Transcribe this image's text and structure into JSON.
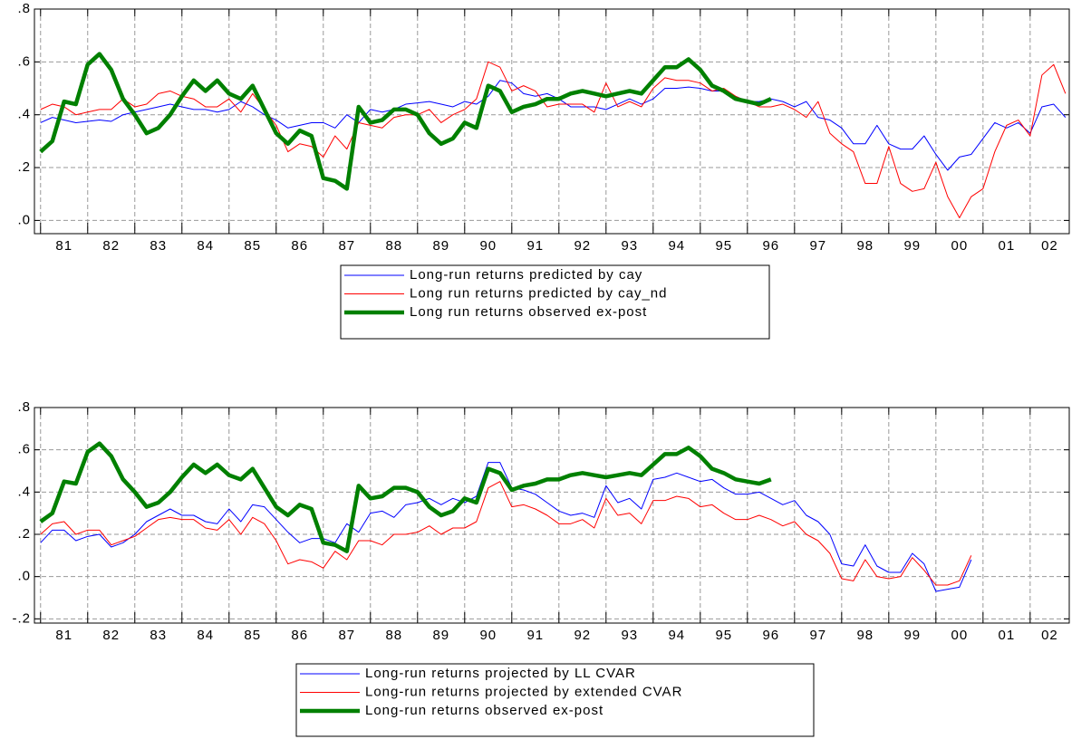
{
  "chart_data": [
    {
      "type": "line",
      "legend": "bottom",
      "grid": true,
      "xlim": [
        1980.87,
        2002.83
      ],
      "ylim": [
        -0.05,
        0.8
      ],
      "yticks": [
        {
          "value": 0.8,
          "label": ".8"
        },
        {
          "value": 0.6,
          "label": ".6"
        },
        {
          "value": 0.4,
          "label": ".4"
        },
        {
          "value": 0.2,
          "label": ".2"
        },
        {
          "value": 0,
          "label": ".0"
        }
      ],
      "xticks": [
        {
          "value": 1981,
          "label": "81"
        },
        {
          "value": 1982,
          "label": "82"
        },
        {
          "value": 1983,
          "label": "83"
        },
        {
          "value": 1984,
          "label": "84"
        },
        {
          "value": 1985,
          "label": "85"
        },
        {
          "value": 1986,
          "label": "86"
        },
        {
          "value": 1987,
          "label": "87"
        },
        {
          "value": 1988,
          "label": "88"
        },
        {
          "value": 1989,
          "label": "89"
        },
        {
          "value": 1990,
          "label": "90"
        },
        {
          "value": 1991,
          "label": "91"
        },
        {
          "value": 1992,
          "label": "92"
        },
        {
          "value": 1993,
          "label": "93"
        },
        {
          "value": 1994,
          "label": "94"
        },
        {
          "value": 1995,
          "label": "95"
        },
        {
          "value": 1996,
          "label": "96"
        },
        {
          "value": 1997,
          "label": "97"
        },
        {
          "value": 1998,
          "label": "98"
        },
        {
          "value": 1999,
          "label": "99"
        },
        {
          "value": 2000,
          "label": "00"
        },
        {
          "value": 2001,
          "label": "01"
        },
        {
          "value": 2002,
          "label": "02"
        }
      ],
      "x": [
        1981,
        1981.25,
        1981.5,
        1981.75,
        1982,
        1982.25,
        1982.5,
        1982.75,
        1983,
        1983.25,
        1983.5,
        1983.75,
        1984,
        1984.25,
        1984.5,
        1984.75,
        1985,
        1985.25,
        1985.5,
        1985.75,
        1986,
        1986.25,
        1986.5,
        1986.75,
        1987,
        1987.25,
        1987.5,
        1987.75,
        1988,
        1988.25,
        1988.5,
        1988.75,
        1989,
        1989.25,
        1989.5,
        1989.75,
        1990,
        1990.25,
        1990.5,
        1990.75,
        1991,
        1991.25,
        1991.5,
        1991.75,
        1992,
        1992.25,
        1992.5,
        1992.75,
        1993,
        1993.25,
        1993.5,
        1993.75,
        1994,
        1994.25,
        1994.5,
        1994.75,
        1995,
        1995.25,
        1995.5,
        1995.75,
        1996,
        1996.25,
        1996.5,
        1996.75,
        1997,
        1997.25,
        1997.5,
        1997.75,
        1998,
        1998.25,
        1998.5,
        1998.75,
        1999,
        1999.25,
        1999.5,
        1999.75,
        2000,
        2000.25,
        2000.5,
        2000.75,
        2001,
        2001.25,
        2001.5,
        2001.75,
        2002,
        2002.25,
        2002.5,
        2002.75
      ],
      "series": [
        {
          "name": "Long-run returns predicted by cay",
          "color": "#0000ff",
          "width": 1,
          "values": [
            0.37,
            0.39,
            0.38,
            0.37,
            0.375,
            0.38,
            0.375,
            0.4,
            0.41,
            0.42,
            0.43,
            0.44,
            0.43,
            0.42,
            0.42,
            0.41,
            0.42,
            0.45,
            0.43,
            0.4,
            0.38,
            0.35,
            0.36,
            0.37,
            0.37,
            0.35,
            0.4,
            0.37,
            0.42,
            0.41,
            0.42,
            0.44,
            0.445,
            0.45,
            0.44,
            0.43,
            0.45,
            0.44,
            0.47,
            0.53,
            0.52,
            0.48,
            0.47,
            0.48,
            0.46,
            0.43,
            0.43,
            0.43,
            0.42,
            0.44,
            0.46,
            0.44,
            0.46,
            0.5,
            0.5,
            0.505,
            0.5,
            0.49,
            0.49,
            0.47,
            0.45,
            0.45,
            0.46,
            0.45,
            0.43,
            0.45,
            0.39,
            0.38,
            0.35,
            0.29,
            0.29,
            0.36,
            0.29,
            0.27,
            0.27,
            0.32,
            0.25,
            0.19,
            0.24,
            0.25,
            0.31,
            0.37,
            0.35,
            0.37,
            0.33,
            0.43,
            0.44,
            0.39
          ]
        },
        {
          "name": "Long run returns predicted by cay_nd",
          "color": "#ff0000",
          "width": 1,
          "values": [
            0.42,
            0.44,
            0.43,
            0.4,
            0.41,
            0.42,
            0.42,
            0.46,
            0.43,
            0.44,
            0.48,
            0.49,
            0.47,
            0.46,
            0.43,
            0.43,
            0.46,
            0.41,
            0.48,
            0.42,
            0.36,
            0.26,
            0.29,
            0.28,
            0.24,
            0.32,
            0.27,
            0.37,
            0.36,
            0.35,
            0.39,
            0.4,
            0.4,
            0.42,
            0.37,
            0.4,
            0.42,
            0.46,
            0.6,
            0.58,
            0.49,
            0.51,
            0.49,
            0.43,
            0.44,
            0.44,
            0.44,
            0.41,
            0.52,
            0.43,
            0.45,
            0.43,
            0.5,
            0.54,
            0.53,
            0.53,
            0.52,
            0.49,
            0.5,
            0.47,
            0.45,
            0.43,
            0.43,
            0.44,
            0.42,
            0.39,
            0.45,
            0.33,
            0.29,
            0.26,
            0.14,
            0.14,
            0.28,
            0.14,
            0.11,
            0.12,
            0.22,
            0.09,
            0.01,
            0.09,
            0.12,
            0.26,
            0.36,
            0.38,
            0.32,
            0.55,
            0.59,
            0.48
          ]
        },
        {
          "name": "Long run returns observed ex-post",
          "color": "#008000",
          "width": 4.5,
          "values": [
            0.26,
            0.3,
            0.45,
            0.44,
            0.59,
            0.63,
            0.57,
            0.46,
            0.4,
            0.33,
            0.35,
            0.4,
            0.47,
            0.53,
            0.49,
            0.53,
            0.48,
            0.46,
            0.51,
            0.42,
            0.33,
            0.29,
            0.34,
            0.32,
            0.16,
            0.15,
            0.12,
            0.43,
            0.37,
            0.38,
            0.42,
            0.42,
            0.4,
            0.33,
            0.29,
            0.31,
            0.37,
            0.35,
            0.51,
            0.49,
            0.41,
            0.43,
            0.44,
            0.46,
            0.46,
            0.48,
            0.49,
            0.48,
            0.47,
            0.48,
            0.49,
            0.48,
            0.53,
            0.58,
            0.58,
            0.61,
            0.57,
            0.51,
            0.49,
            0.46,
            0.45,
            0.44,
            0.46,
            null,
            null,
            null,
            null,
            null,
            null,
            null,
            null,
            null,
            null,
            null,
            null,
            null,
            null,
            null,
            null,
            null,
            null,
            null,
            null,
            null,
            null,
            null,
            null,
            null
          ]
        }
      ]
    },
    {
      "type": "line",
      "legend": "bottom",
      "grid": true,
      "xlim": [
        1980.87,
        2002.83
      ],
      "ylim": [
        -0.22,
        0.8
      ],
      "yticks": [
        {
          "value": 0.8,
          "label": ".8"
        },
        {
          "value": 0.6,
          "label": ".6"
        },
        {
          "value": 0.4,
          "label": ".4"
        },
        {
          "value": 0.2,
          "label": ".2"
        },
        {
          "value": 0,
          "label": ".0"
        },
        {
          "value": -0.2,
          "label": "-.2"
        }
      ],
      "xticks": [
        {
          "value": 1981,
          "label": "81"
        },
        {
          "value": 1982,
          "label": "82"
        },
        {
          "value": 1983,
          "label": "83"
        },
        {
          "value": 1984,
          "label": "84"
        },
        {
          "value": 1985,
          "label": "85"
        },
        {
          "value": 1986,
          "label": "86"
        },
        {
          "value": 1987,
          "label": "87"
        },
        {
          "value": 1988,
          "label": "88"
        },
        {
          "value": 1989,
          "label": "89"
        },
        {
          "value": 1990,
          "label": "90"
        },
        {
          "value": 1991,
          "label": "91"
        },
        {
          "value": 1992,
          "label": "92"
        },
        {
          "value": 1993,
          "label": "93"
        },
        {
          "value": 1994,
          "label": "94"
        },
        {
          "value": 1995,
          "label": "95"
        },
        {
          "value": 1996,
          "label": "96"
        },
        {
          "value": 1997,
          "label": "97"
        },
        {
          "value": 1998,
          "label": "98"
        },
        {
          "value": 1999,
          "label": "99"
        },
        {
          "value": 2000,
          "label": "00"
        },
        {
          "value": 2001,
          "label": "01"
        },
        {
          "value": 2002,
          "label": "02"
        }
      ],
      "x": [
        1981,
        1981.25,
        1981.5,
        1981.75,
        1982,
        1982.25,
        1982.5,
        1982.75,
        1983,
        1983.25,
        1983.5,
        1983.75,
        1984,
        1984.25,
        1984.5,
        1984.75,
        1985,
        1985.25,
        1985.5,
        1985.75,
        1986,
        1986.25,
        1986.5,
        1986.75,
        1987,
        1987.25,
        1987.5,
        1987.75,
        1988,
        1988.25,
        1988.5,
        1988.75,
        1989,
        1989.25,
        1989.5,
        1989.75,
        1990,
        1990.25,
        1990.5,
        1990.75,
        1991,
        1991.25,
        1991.5,
        1991.75,
        1992,
        1992.25,
        1992.5,
        1992.75,
        1993,
        1993.25,
        1993.5,
        1993.75,
        1994,
        1994.25,
        1994.5,
        1994.75,
        1995,
        1995.25,
        1995.5,
        1995.75,
        1996,
        1996.25,
        1996.5,
        1996.75,
        1997,
        1997.25,
        1997.5,
        1997.75,
        1998,
        1998.25,
        1998.5,
        1998.75,
        1999,
        1999.25,
        1999.5,
        1999.75,
        2000,
        2000.25,
        2000.5,
        2000.75,
        2001,
        2001.25,
        2001.5,
        2001.75,
        2002,
        2002.25,
        2002.5,
        2002.75
      ],
      "series": [
        {
          "name": "Long-run returns projected by LL CVAR",
          "color": "#0000ff",
          "width": 1,
          "values": [
            0.16,
            0.22,
            0.22,
            0.17,
            0.19,
            0.2,
            0.14,
            0.16,
            0.2,
            0.26,
            0.29,
            0.32,
            0.29,
            0.29,
            0.26,
            0.25,
            0.32,
            0.26,
            0.34,
            0.33,
            0.27,
            0.21,
            0.16,
            0.18,
            0.18,
            0.16,
            0.25,
            0.21,
            0.3,
            0.31,
            0.28,
            0.34,
            0.35,
            0.37,
            0.34,
            0.37,
            0.35,
            0.38,
            0.54,
            0.54,
            0.42,
            0.41,
            0.39,
            0.35,
            0.31,
            0.29,
            0.3,
            0.28,
            0.43,
            0.35,
            0.37,
            0.32,
            0.46,
            0.47,
            0.49,
            0.47,
            0.45,
            0.46,
            0.42,
            0.39,
            0.39,
            0.4,
            0.37,
            0.34,
            0.36,
            0.29,
            0.26,
            0.2,
            0.06,
            0.05,
            0.15,
            0.05,
            0.02,
            0.02,
            0.11,
            0.06,
            -0.07,
            -0.06,
            -0.05,
            0.08,
            null,
            null,
            null,
            null,
            null,
            null,
            null,
            null
          ]
        },
        {
          "name": "Long-run returns projected by extended CVAR",
          "color": "#ff0000",
          "width": 1,
          "values": [
            0.2,
            0.25,
            0.26,
            0.2,
            0.22,
            0.22,
            0.15,
            0.17,
            0.19,
            0.23,
            0.27,
            0.28,
            0.27,
            0.27,
            0.23,
            0.22,
            0.27,
            0.2,
            0.28,
            0.25,
            0.17,
            0.06,
            0.08,
            0.07,
            0.04,
            0.12,
            0.08,
            0.17,
            0.17,
            0.15,
            0.2,
            0.2,
            0.21,
            0.24,
            0.2,
            0.23,
            0.23,
            0.26,
            0.42,
            0.45,
            0.33,
            0.34,
            0.32,
            0.29,
            0.25,
            0.25,
            0.27,
            0.23,
            0.37,
            0.29,
            0.3,
            0.25,
            0.36,
            0.36,
            0.38,
            0.37,
            0.33,
            0.34,
            0.3,
            0.27,
            0.27,
            0.29,
            0.27,
            0.24,
            0.26,
            0.2,
            0.17,
            0.11,
            -0.01,
            -0.02,
            0.08,
            0.0,
            -0.01,
            0.0,
            0.09,
            0.03,
            -0.04,
            -0.04,
            -0.02,
            0.1,
            null,
            null,
            null,
            null,
            null,
            null,
            null,
            null
          ]
        },
        {
          "name": "Long-run returns observed ex-post",
          "color": "#008000",
          "width": 4.5,
          "values": [
            0.26,
            0.3,
            0.45,
            0.44,
            0.59,
            0.63,
            0.57,
            0.46,
            0.4,
            0.33,
            0.35,
            0.4,
            0.47,
            0.53,
            0.49,
            0.53,
            0.48,
            0.46,
            0.51,
            0.42,
            0.33,
            0.29,
            0.34,
            0.32,
            0.16,
            0.15,
            0.12,
            0.43,
            0.37,
            0.38,
            0.42,
            0.42,
            0.4,
            0.33,
            0.29,
            0.31,
            0.37,
            0.35,
            0.51,
            0.49,
            0.41,
            0.43,
            0.44,
            0.46,
            0.46,
            0.48,
            0.49,
            0.48,
            0.47,
            0.48,
            0.49,
            0.48,
            0.53,
            0.58,
            0.58,
            0.61,
            0.57,
            0.51,
            0.49,
            0.46,
            0.45,
            0.44,
            0.46,
            null,
            null,
            null,
            null,
            null,
            null,
            null,
            null,
            null,
            null,
            null,
            null,
            null,
            null,
            null,
            null,
            null,
            null,
            null,
            null,
            null,
            null,
            null,
            null,
            null
          ]
        }
      ]
    }
  ]
}
